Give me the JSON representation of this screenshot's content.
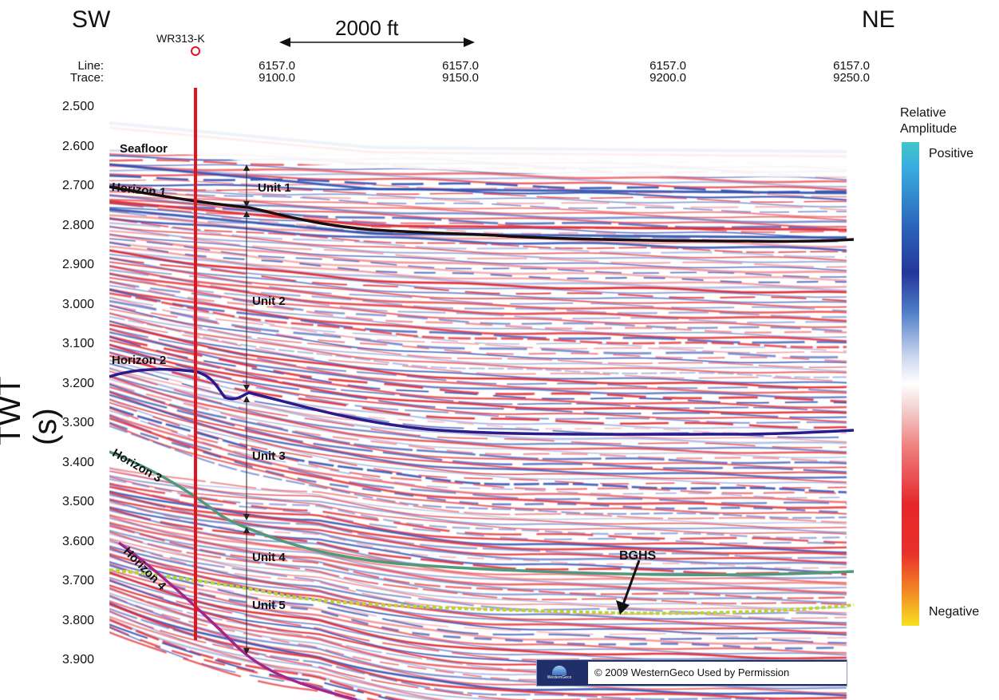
{
  "header": {
    "direction_left": "SW",
    "direction_right": "NE",
    "well_label": "WR313-K",
    "scale_label": "2000 ft",
    "line_label": "Line:",
    "trace_label": "Trace:",
    "line_values": [
      "6157.0",
      "6157.0",
      "6157.0",
      "6157.0"
    ],
    "trace_values": [
      "9100.0",
      "9150.0",
      "9200.0",
      "9250.0"
    ]
  },
  "axis": {
    "title": "TWT (s)",
    "ticks": [
      "2.500",
      "2.600",
      "2.700",
      "2.800",
      "2.900",
      "3.000",
      "3.100",
      "3.200",
      "3.300",
      "3.400",
      "3.500",
      "3.600",
      "3.700",
      "3.800",
      "3.900"
    ]
  },
  "annotations": {
    "seafloor": "Seafloor",
    "horizon1": "Horizon 1",
    "horizon2": "Horizon 2",
    "horizon3": "Horizon 3",
    "horizon4": "Horizon 4",
    "unit1": "Unit 1",
    "unit2": "Unit 2",
    "unit3": "Unit 3",
    "unit4": "Unit 4",
    "unit5": "Unit 5",
    "bghs": "BGHS"
  },
  "legend": {
    "title_line1": "Relative",
    "title_line2": "Amplitude",
    "positive": "Positive",
    "negative": "Negative"
  },
  "copyright": {
    "logo_text": "WesternGeco",
    "text": "© 2009  WesternGeco  Used by Permission"
  },
  "colors": {
    "well_line": "#e0151b",
    "horizon1": "#1a0d0d",
    "horizon2": "#2a1a8c",
    "horizon3": "#4f9a7a",
    "horizon4": "#a4268c",
    "bghs": "#b8d43a",
    "positive": "#2a62b8",
    "negative": "#e5262a"
  }
}
